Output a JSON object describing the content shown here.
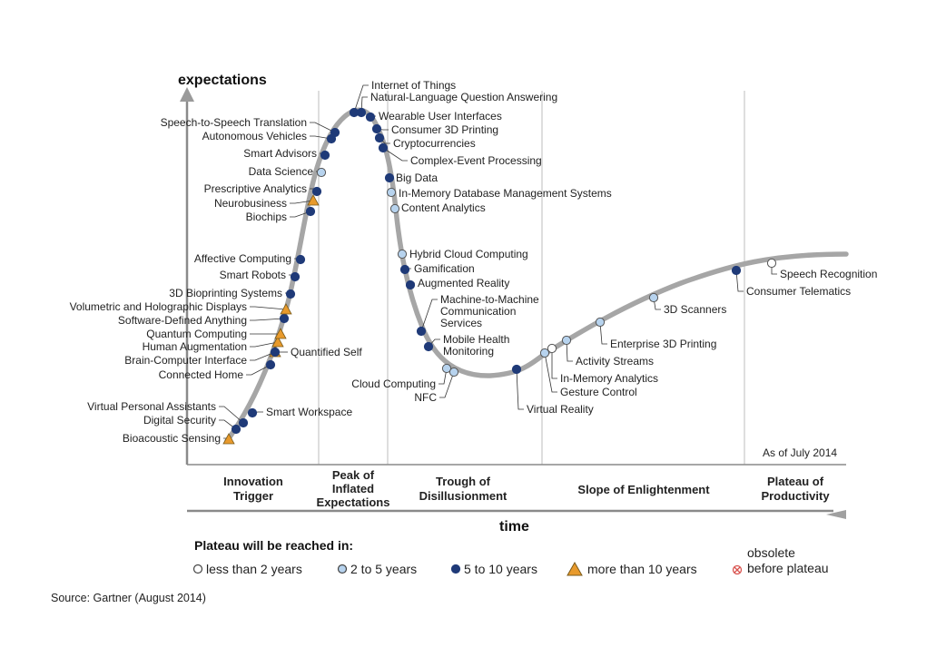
{
  "chart_data": {
    "type": "hype-cycle",
    "y_axis_label": "expectations",
    "x_axis_label": "time",
    "as_of": "As of July 2014",
    "phases": [
      {
        "lines": [
          "Innovation",
          "Trigger"
        ]
      },
      {
        "lines": [
          "Peak of",
          "Inflated",
          "Expectations"
        ]
      },
      {
        "lines": [
          "Trough of",
          "Disillusionment"
        ]
      },
      {
        "lines": [
          "Slope of Enlightenment"
        ]
      },
      {
        "lines": [
          "Plateau of",
          "Productivity"
        ]
      }
    ],
    "points": [
      {
        "name": "Bioacoustic Sensing",
        "plateau": "more than 10 years"
      },
      {
        "name": "Digital Security",
        "plateau": "5 to 10 years"
      },
      {
        "name": "Virtual Personal Assistants",
        "plateau": "5 to 10 years"
      },
      {
        "name": "Smart Workspace",
        "plateau": "5 to 10 years"
      },
      {
        "name": "Connected Home",
        "plateau": "5 to 10 years"
      },
      {
        "name": "Brain-Computer Interface",
        "plateau": "more than 10 years"
      },
      {
        "name": "Quantified Self",
        "plateau": "5 to 10 years"
      },
      {
        "name": "Human Augmentation",
        "plateau": "more than 10 years"
      },
      {
        "name": "Quantum Computing",
        "plateau": "more than 10 years"
      },
      {
        "name": "Software-Defined Anything",
        "plateau": "5 to 10 years"
      },
      {
        "name": "Volumetric and Holographic Displays",
        "plateau": "more than 10 years"
      },
      {
        "name": "3D Bioprinting Systems",
        "plateau": "5 to 10 years"
      },
      {
        "name": "Smart Robots",
        "plateau": "5 to 10 years"
      },
      {
        "name": "Affective Computing",
        "plateau": "5 to 10 years"
      },
      {
        "name": "Biochips",
        "plateau": "5 to 10 years"
      },
      {
        "name": "Neurobusiness",
        "plateau": "more than 10 years"
      },
      {
        "name": "Prescriptive Analytics",
        "plateau": "5 to 10 years"
      },
      {
        "name": "Data Science",
        "plateau": "2 to 5 years"
      },
      {
        "name": "Smart Advisors",
        "plateau": "5 to 10 years"
      },
      {
        "name": "Autonomous Vehicles",
        "plateau": "5 to 10 years"
      },
      {
        "name": "Speech-to-Speech Translation",
        "plateau": "5 to 10 years"
      },
      {
        "name": "Internet of Things",
        "plateau": "5 to 10 years"
      },
      {
        "name": "Natural-Language Question Answering",
        "plateau": "5 to 10 years"
      },
      {
        "name": "Wearable User Interfaces",
        "plateau": "5 to 10 years"
      },
      {
        "name": "Consumer 3D Printing",
        "plateau": "5 to 10 years"
      },
      {
        "name": "Cryptocurrencies",
        "plateau": "5 to 10 years"
      },
      {
        "name": "Complex-Event Processing",
        "plateau": "5 to 10 years"
      },
      {
        "name": "Big Data",
        "plateau": "5 to 10 years"
      },
      {
        "name": "In-Memory Database Management Systems",
        "plateau": "2 to 5 years"
      },
      {
        "name": "Content Analytics",
        "plateau": "2 to 5 years"
      },
      {
        "name": "Hybrid Cloud Computing",
        "plateau": "2 to 5 years"
      },
      {
        "name": "Gamification",
        "plateau": "5 to 10 years"
      },
      {
        "name": "Augmented Reality",
        "plateau": "5 to 10 years"
      },
      {
        "name": "Machine-to-Machine Communication Services",
        "plateau": "5 to 10 years"
      },
      {
        "name": "Mobile Health Monitoring",
        "plateau": "5 to 10 years"
      },
      {
        "name": "Cloud Computing",
        "plateau": "2 to 5 years"
      },
      {
        "name": "NFC",
        "plateau": "2 to 5 years"
      },
      {
        "name": "Virtual Reality",
        "plateau": "5 to 10 years"
      },
      {
        "name": "Gesture Control",
        "plateau": "2 to 5 years"
      },
      {
        "name": "In-Memory Analytics",
        "plateau": "less than 2 years"
      },
      {
        "name": "Activity Streams",
        "plateau": "2 to 5 years"
      },
      {
        "name": "Enterprise 3D Printing",
        "plateau": "2 to 5 years"
      },
      {
        "name": "3D Scanners",
        "plateau": "2 to 5 years"
      },
      {
        "name": "Consumer Telematics",
        "plateau": "5 to 10 years"
      },
      {
        "name": "Speech Recognition",
        "plateau": "less than 2 years"
      }
    ],
    "legend": {
      "title": "Plateau will be reached in:",
      "items": [
        {
          "key": "less than 2 years",
          "label": "less than 2 years"
        },
        {
          "key": "2 to 5 years",
          "label": "2 to 5 years"
        },
        {
          "key": "5 to 10 years",
          "label": "5 to 10 years"
        },
        {
          "key": "more than 10 years",
          "label": "more than 10 years"
        }
      ],
      "obsolete": [
        "obsolete",
        "before plateau"
      ]
    },
    "colors": {
      "curve": "#a6a6a6",
      "dark_blue": "#1f3a78",
      "light_blue": "#b7d3ee",
      "triangle": "#e89a2c",
      "obsolete": "#d9534f",
      "divider": "#c8c8c8"
    }
  },
  "source": "Source: Gartner (August 2014)"
}
